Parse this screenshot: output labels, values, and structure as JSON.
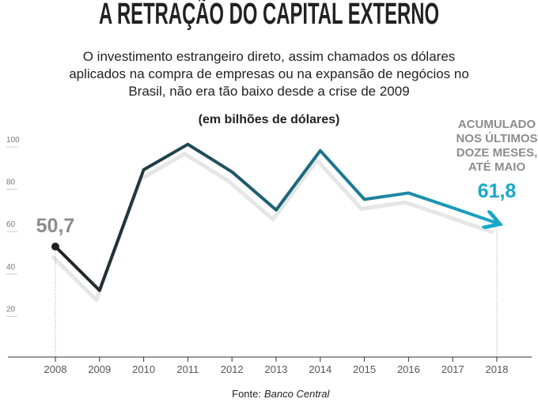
{
  "chart_data": {
    "type": "line",
    "title": "A RETRAÇÃO DO CAPITAL EXTERNO",
    "subtitle": [
      "O investimento estrangeiro direto, assim chamados os dólares",
      "aplicados na compra de empresas ou na expansão de negócios no",
      "Brasil, não era tão baixo desde a crise de 2009"
    ],
    "unit_label": "(em bilhões de dólares)",
    "annotation": [
      "ACUMULADO",
      "NOS ÚLTIMOS",
      "DOZE MESES,",
      "ATÉ MAIO"
    ],
    "categories": [
      "2008",
      "2009",
      "2010",
      "2011",
      "2012",
      "2013",
      "2014",
      "2015",
      "2016",
      "2017",
      "2018"
    ],
    "series": [
      {
        "name": "Investimento estrangeiro direto",
        "gradient": [
          "#231f20",
          "#19a8c9"
        ],
        "values": [
          50.7,
          30,
          87,
          99,
          86,
          68,
          96,
          73,
          76,
          69,
          61.8
        ],
        "value_labels": [
          "50,7",
          null,
          null,
          null,
          null,
          null,
          null,
          null,
          null,
          null,
          "61,8"
        ],
        "label_colors": [
          "#8c8c8c",
          "#19a8c9"
        ]
      }
    ],
    "shadow_color": "#e6e6e6",
    "ylim": [
      0,
      105
    ],
    "yticks": [
      20,
      40,
      60,
      80,
      100
    ],
    "source_label": "Fonte:",
    "source": "Banco Central"
  }
}
